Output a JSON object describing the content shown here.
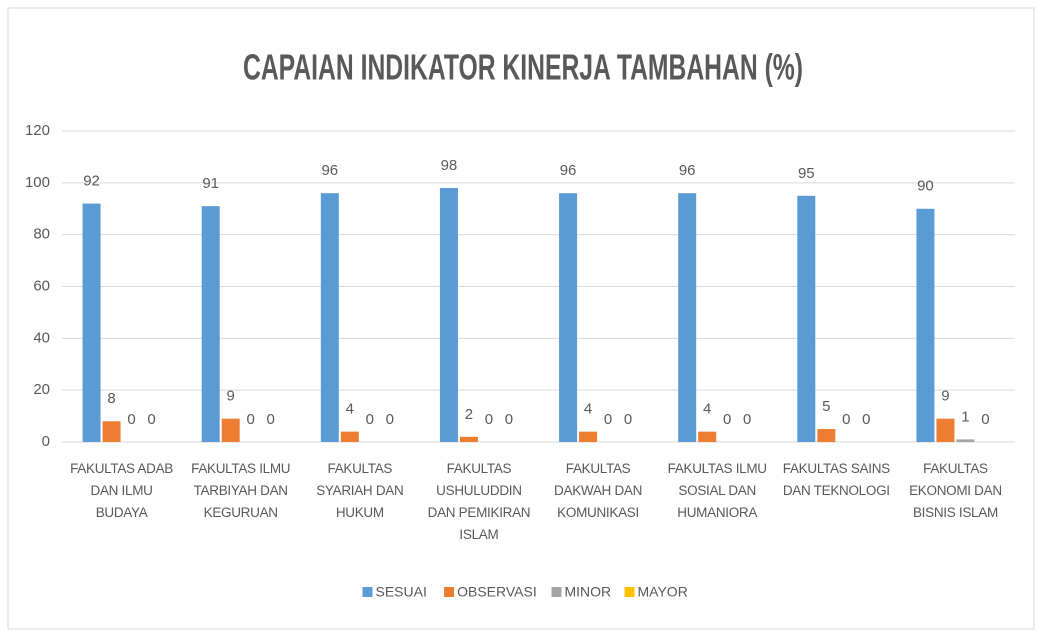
{
  "chart_data": {
    "type": "bar",
    "title": "CAPAIAN INDIKATOR KINERJA TAMBAHAN (%)",
    "categories": [
      "FAKULTAS ADAB DAN ILMU BUDAYA",
      "FAKULTAS ILMU TARBIYAH DAN KEGURUAN",
      "FAKULTAS SYARIAH DAN HUKUM",
      "FAKULTAS USHULUDDIN DAN PEMIKIRAN ISLAM",
      "FAKULTAS DAKWAH DAN KOMUNIKASI",
      "FAKULTAS ILMU SOSIAL DAN HUMANIORA",
      "FAKULTAS SAINS DAN TEKNOLOGI",
      "FAKULTAS EKONOMI DAN BISNIS ISLAM"
    ],
    "series": [
      {
        "name": "SESUAI",
        "color": "#5b9bd5",
        "values": [
          92,
          91,
          96,
          98,
          96,
          96,
          95,
          90
        ]
      },
      {
        "name": "OBSERVASI",
        "color": "#ed7d31",
        "values": [
          8,
          9,
          4,
          2,
          4,
          4,
          5,
          9
        ]
      },
      {
        "name": "MINOR",
        "color": "#a5a5a5",
        "values": [
          0,
          0,
          0,
          0,
          0,
          0,
          0,
          1
        ]
      },
      {
        "name": "MAYOR",
        "color": "#ffc000",
        "values": [
          0,
          0,
          0,
          0,
          0,
          0,
          0,
          0
        ]
      }
    ],
    "ylim": [
      0,
      120
    ],
    "yticks": [
      0,
      20,
      40,
      60,
      80,
      100,
      120
    ],
    "grid": true,
    "legend": "bottom"
  }
}
